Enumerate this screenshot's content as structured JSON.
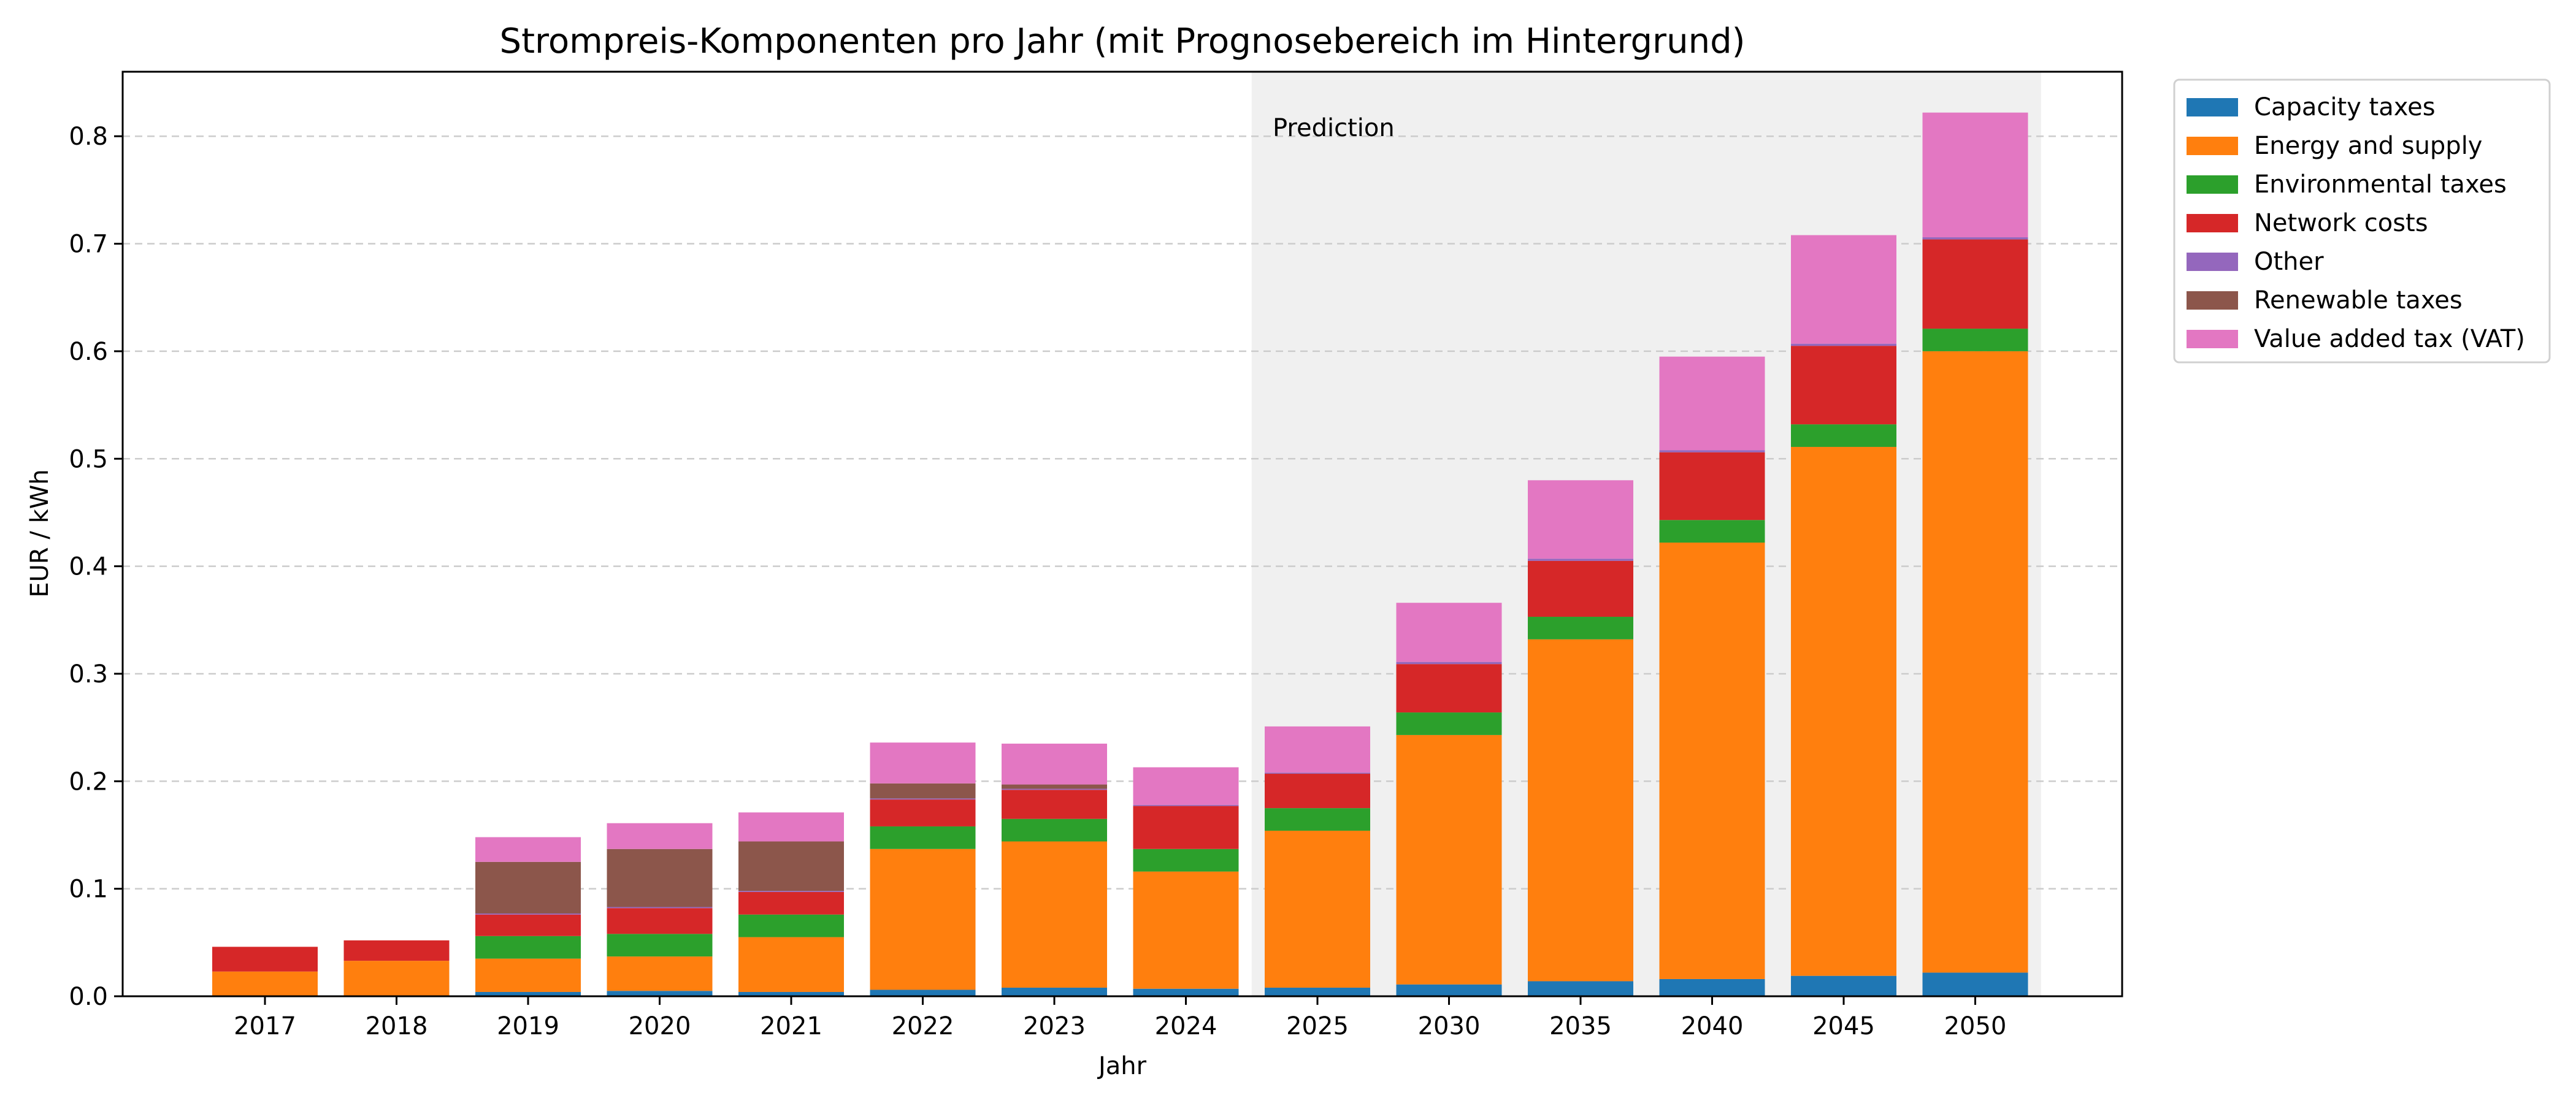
{
  "chart_data": {
    "type": "bar",
    "stacked": true,
    "title": "Strompreis-Komponenten pro Jahr (mit Prognosebereich im Hintergrund)",
    "xlabel": "Jahr",
    "ylabel": "EUR / kWh",
    "ylim": [
      0,
      0.86
    ],
    "yticks": [
      0.0,
      0.1,
      0.2,
      0.3,
      0.4,
      0.5,
      0.6,
      0.7,
      0.8
    ],
    "ytick_labels": [
      "0.0",
      "0.1",
      "0.2",
      "0.3",
      "0.4",
      "0.5",
      "0.6",
      "0.7",
      "0.8"
    ],
    "grid": "horizontal dashed",
    "legend_position": "outside upper right",
    "categories": [
      "2017",
      "2018",
      "2019",
      "2020",
      "2021",
      "2022",
      "2023",
      "2024",
      "2025",
      "2030",
      "2035",
      "2040",
      "2045",
      "2050"
    ],
    "prediction_region": {
      "from": "2025",
      "to": "2050",
      "label": "Prediction",
      "color": "#f0f0f0"
    },
    "series": [
      {
        "name": "Capacity taxes",
        "color": "#1f77b4",
        "values": [
          0.0,
          0.0,
          0.004,
          0.005,
          0.004,
          0.006,
          0.008,
          0.007,
          0.008,
          0.011,
          0.014,
          0.016,
          0.019,
          0.022
        ]
      },
      {
        "name": "Energy and supply",
        "color": "#ff7f0e",
        "values": [
          0.023,
          0.033,
          0.031,
          0.032,
          0.051,
          0.131,
          0.136,
          0.109,
          0.146,
          0.232,
          0.318,
          0.406,
          0.492,
          0.578
        ]
      },
      {
        "name": "Environmental taxes",
        "color": "#2ca02c",
        "values": [
          0.0,
          0.0,
          0.021,
          0.021,
          0.021,
          0.021,
          0.021,
          0.021,
          0.021,
          0.021,
          0.021,
          0.021,
          0.021,
          0.021
        ]
      },
      {
        "name": "Network costs",
        "color": "#d62728",
        "values": [
          0.023,
          0.019,
          0.02,
          0.024,
          0.021,
          0.025,
          0.027,
          0.04,
          0.032,
          0.045,
          0.052,
          0.063,
          0.073,
          0.083
        ]
      },
      {
        "name": "Other",
        "color": "#9467bd",
        "values": [
          0.0,
          0.0,
          0.001,
          0.001,
          0.001,
          0.001,
          0.001,
          0.001,
          0.001,
          0.002,
          0.002,
          0.002,
          0.002,
          0.002
        ]
      },
      {
        "name": "Renewable taxes",
        "color": "#8c564b",
        "values": [
          0.0,
          0.0,
          0.048,
          0.054,
          0.046,
          0.014,
          0.004,
          0.0,
          0.0,
          0.0,
          0.0,
          0.0,
          0.0,
          0.0
        ]
      },
      {
        "name": "Value added tax (VAT)",
        "color": "#e377c2",
        "values": [
          0.0,
          0.0,
          0.023,
          0.024,
          0.027,
          0.038,
          0.038,
          0.035,
          0.043,
          0.055,
          0.073,
          0.087,
          0.101,
          0.116
        ]
      }
    ]
  }
}
